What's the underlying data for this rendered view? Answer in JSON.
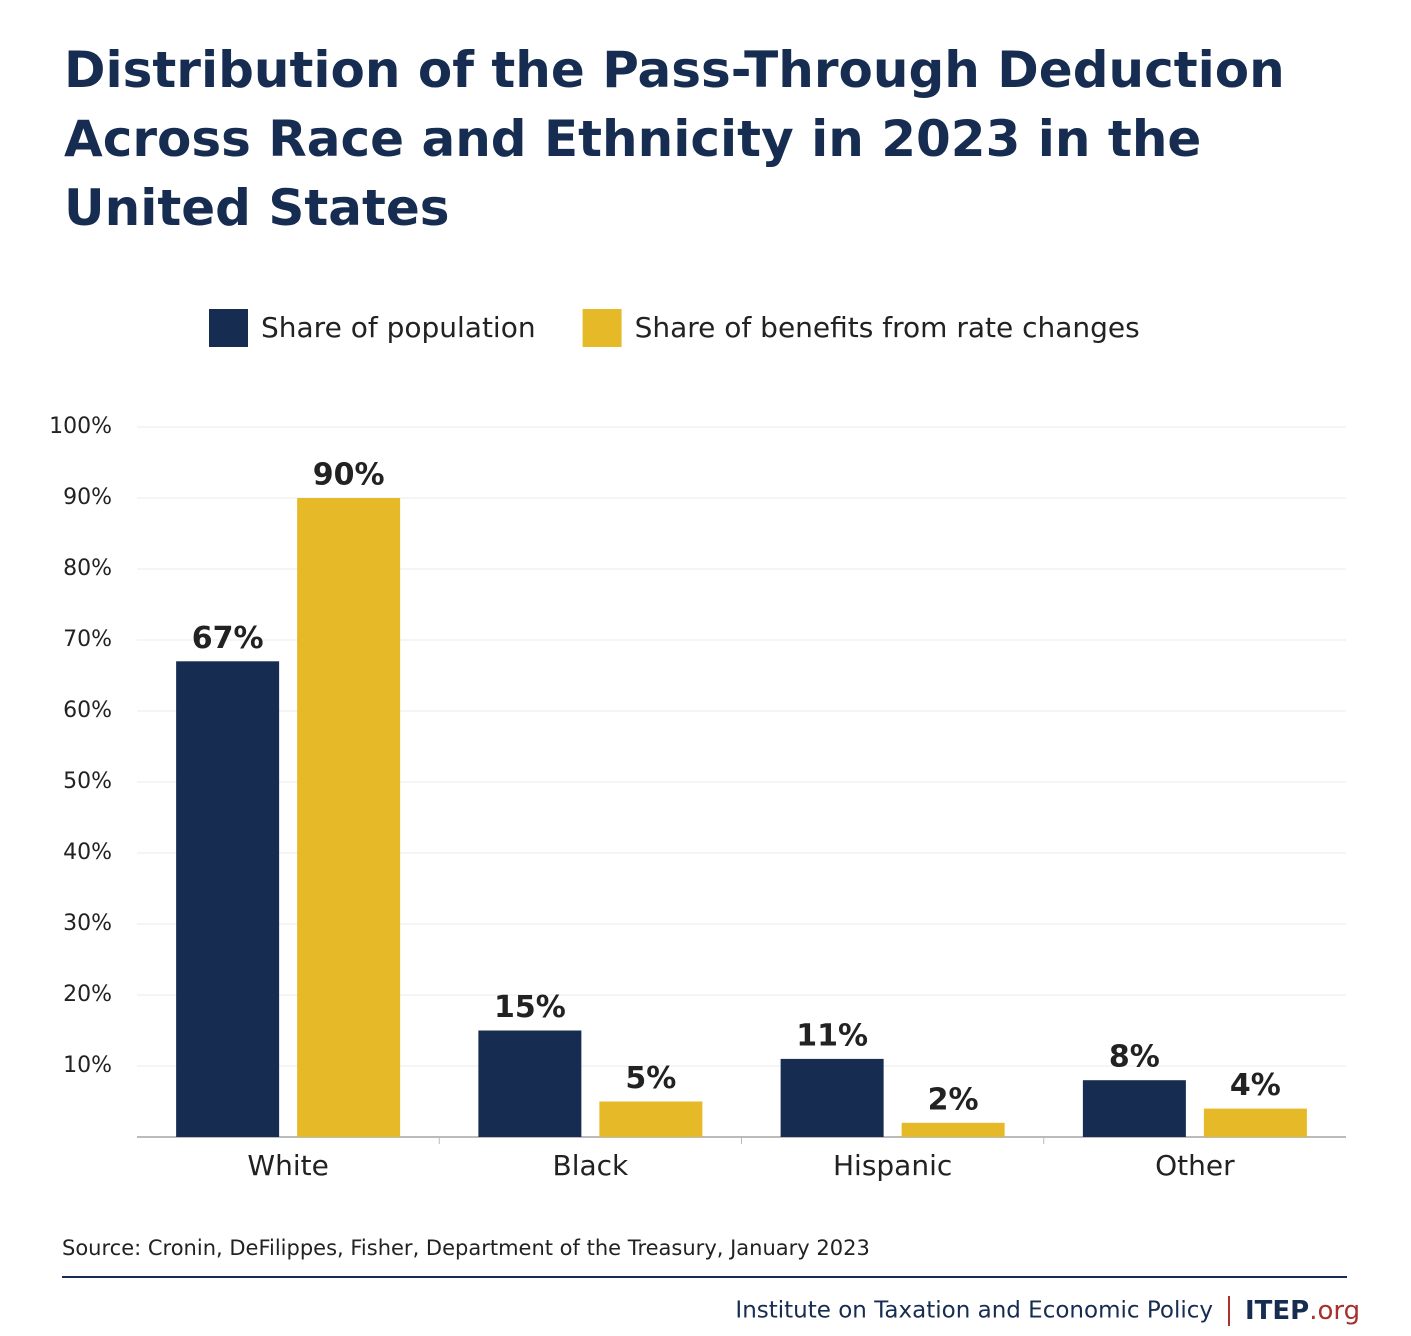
{
  "chart_data": {
    "type": "bar",
    "title": "Distribution of the Pass-Through Deduction Across Race and Ethnicity in 2023 in the United States",
    "categories": [
      "White",
      "Black",
      "Hispanic",
      "Other"
    ],
    "series": [
      {
        "name": "Share of population",
        "color": "#162c51",
        "values": [
          67,
          15,
          11,
          8
        ],
        "value_labels": [
          "67%",
          "15%",
          "11%",
          "8%"
        ]
      },
      {
        "name": "Share of benefits from rate changes",
        "color": "#e6b929",
        "values": [
          90,
          5,
          2,
          4
        ],
        "value_labels": [
          "90%",
          "5%",
          "2%",
          "4%"
        ]
      }
    ],
    "ylim": [
      0,
      100
    ],
    "yticks": [
      {
        "value": 10,
        "label": "10%"
      },
      {
        "value": 20,
        "label": "20%"
      },
      {
        "value": 30,
        "label": "30%"
      },
      {
        "value": 40,
        "label": "40%"
      },
      {
        "value": 50,
        "label": "50%"
      },
      {
        "value": 60,
        "label": "60%"
      },
      {
        "value": 70,
        "label": "70%"
      },
      {
        "value": 80,
        "label": "80%"
      },
      {
        "value": 90,
        "label": "90%"
      },
      {
        "value": 100,
        "label": "100%"
      }
    ],
    "grid": true,
    "legend": "top",
    "source": "Source: Cronin, DeFilippes, Fisher, Department of the Treasury, January 2023"
  },
  "footer": {
    "organization": "Institute on Taxation and Economic Policy",
    "logo": "ITEP",
    "logo_suffix": ".org"
  }
}
